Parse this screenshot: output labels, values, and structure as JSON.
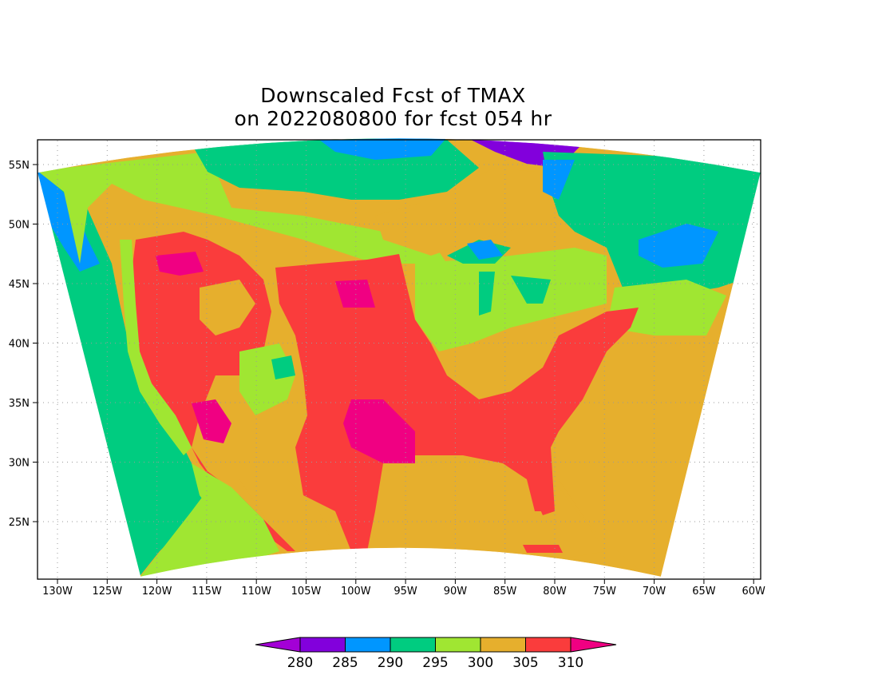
{
  "title": {
    "line1": "Downscaled Fcst of TMAX",
    "line2": "on 2022080800 for fcst 054 hr"
  },
  "map": {
    "variable": "TMAX",
    "lon_range": [
      -132,
      -59
    ],
    "lat_range": [
      20,
      57
    ],
    "grid": "dotted",
    "lon_ticks": [
      "130W",
      "125W",
      "120W",
      "115W",
      "110W",
      "105W",
      "100W",
      "95W",
      "90W",
      "85W",
      "80W",
      "75W",
      "70W",
      "65W",
      "60W"
    ],
    "lat_ticks": [
      "25N",
      "30N",
      "35N",
      "40N",
      "45N",
      "50N",
      "55N"
    ]
  },
  "colorbar": {
    "levels": [
      "280",
      "285",
      "290",
      "295",
      "300",
      "305",
      "310"
    ],
    "colors": [
      "#a300d6",
      "#8200dc",
      "#0096ff",
      "#00cc80",
      "#a0e632",
      "#e6af2d",
      "#fa3c3c",
      "#f00082"
    ]
  },
  "palette": {
    "t280": "#a300d6",
    "t285": "#8200dc",
    "t290": "#0096ff",
    "t295": "#00cc80",
    "t300": "#a0e632",
    "t305": "#e6af2d",
    "t310": "#fa3c3c",
    "t310plus": "#f00082"
  }
}
